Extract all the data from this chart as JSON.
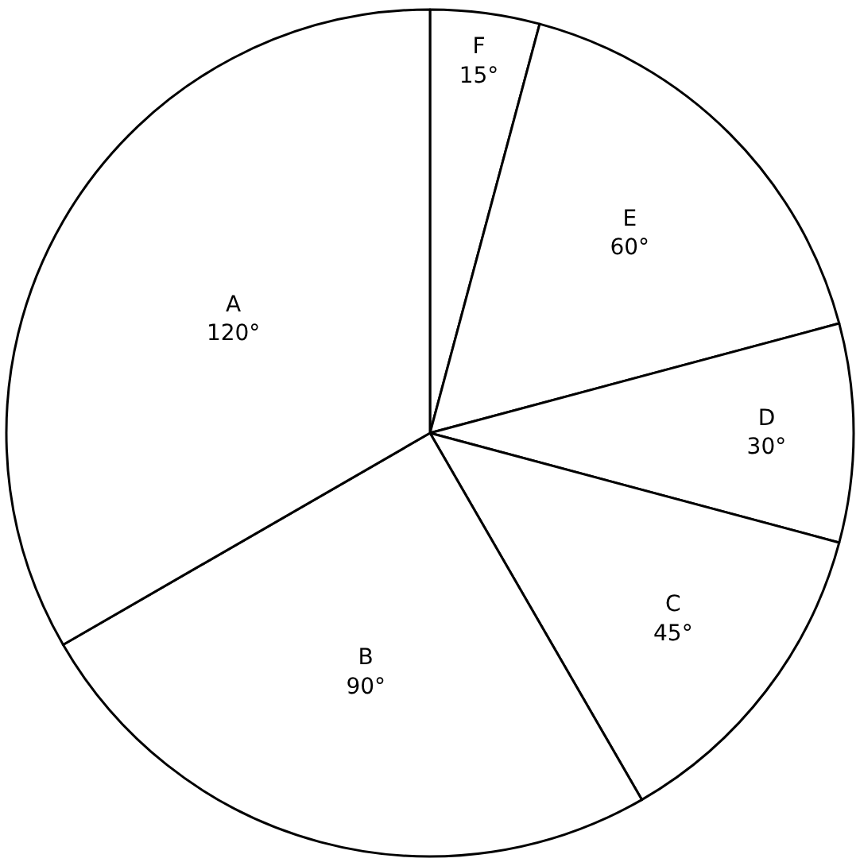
{
  "chart_data": {
    "type": "pie",
    "categories": [
      "F",
      "E",
      "D",
      "C",
      "B",
      "A"
    ],
    "values": [
      15,
      60,
      30,
      45,
      90,
      120
    ],
    "value_labels": [
      "15°",
      "60°",
      "30°",
      "45°",
      "90°",
      "120°"
    ],
    "colors": [
      "#ffffff",
      "#ffffff",
      "#ffffff",
      "#ffffff",
      "#ffffff",
      "#ffffff"
    ],
    "legend": false
  }
}
